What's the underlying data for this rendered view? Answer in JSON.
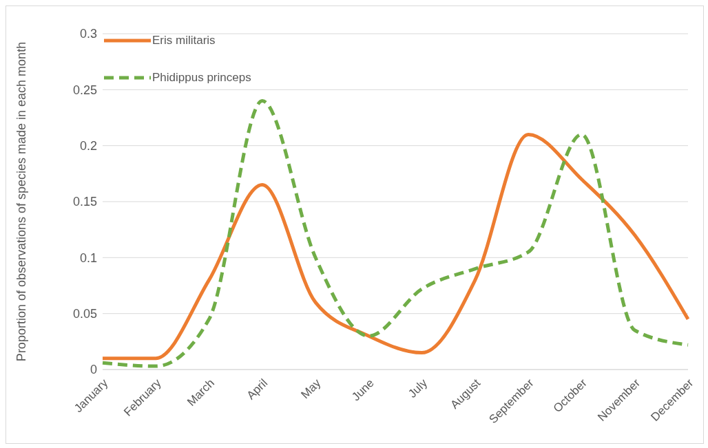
{
  "chart_data": {
    "type": "line",
    "ylabel": "Proportion of observations of species made in each month",
    "categories": [
      "January",
      "February",
      "March",
      "April",
      "May",
      "June",
      "July",
      "August",
      "September",
      "October",
      "November",
      "December"
    ],
    "series": [
      {
        "name": "Eris militaris",
        "color": "#ed7d31",
        "line_style": "solid",
        "values": [
          0.01,
          0.01,
          0.08,
          0.165,
          0.06,
          0.03,
          0.015,
          0.08,
          0.21,
          0.17,
          0.12,
          0.045
        ]
      },
      {
        "name": "Phidippus princeps",
        "color": "#70ad47",
        "line_style": "dashed",
        "values": [
          0.006,
          0.003,
          0.045,
          0.24,
          0.1,
          0.03,
          0.072,
          0.09,
          0.105,
          0.21,
          0.035,
          0.022
        ]
      }
    ],
    "ylim": [
      0,
      0.3
    ],
    "yticks": [
      0,
      0.05,
      0.1,
      0.15,
      0.2,
      0.25,
      0.3
    ],
    "grid": "y",
    "legend": "top left",
    "marker": "none"
  }
}
